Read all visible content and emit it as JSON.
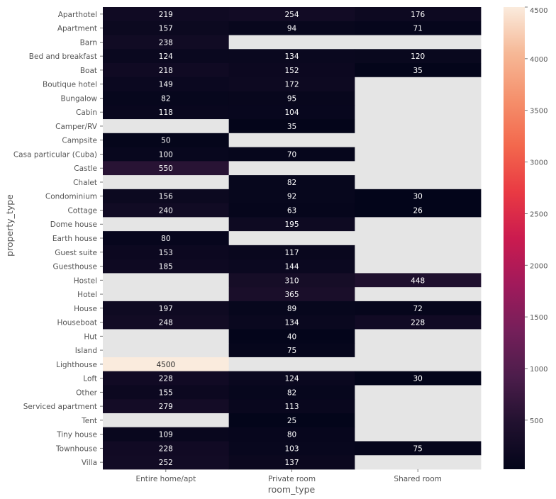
{
  "chart_data": {
    "type": "heatmap",
    "title": "",
    "xlabel": "room_type",
    "ylabel": "property_type",
    "x_categories": [
      "Entire home/apt",
      "Private room",
      "Shared room"
    ],
    "y_categories": [
      "Aparthotel",
      "Apartment",
      "Barn",
      "Bed and breakfast",
      "Boat",
      "Boutique hotel",
      "Bungalow",
      "Cabin",
      "Camper/RV",
      "Campsite",
      "Casa particular (Cuba)",
      "Castle",
      "Chalet",
      "Condominium",
      "Cottage",
      "Dome house",
      "Earth house",
      "Guest suite",
      "Guesthouse",
      "Hostel",
      "Hotel",
      "House",
      "Houseboat",
      "Hut",
      "Island",
      "Lighthouse",
      "Loft",
      "Other",
      "Serviced apartment",
      "Tent",
      "Tiny house",
      "Townhouse",
      "Villa"
    ],
    "values": [
      [
        219,
        254,
        176
      ],
      [
        157,
        94,
        71
      ],
      [
        238,
        null,
        null
      ],
      [
        124,
        134,
        120
      ],
      [
        218,
        152,
        35
      ],
      [
        149,
        172,
        null
      ],
      [
        82,
        95,
        null
      ],
      [
        118,
        104,
        null
      ],
      [
        null,
        35,
        null
      ],
      [
        50,
        null,
        null
      ],
      [
        100,
        70,
        null
      ],
      [
        550,
        null,
        null
      ],
      [
        null,
        82,
        null
      ],
      [
        156,
        92,
        30
      ],
      [
        240,
        63,
        26
      ],
      [
        null,
        195,
        null
      ],
      [
        80,
        null,
        null
      ],
      [
        153,
        117,
        null
      ],
      [
        185,
        144,
        null
      ],
      [
        null,
        310,
        448
      ],
      [
        null,
        365,
        null
      ],
      [
        197,
        89,
        72
      ],
      [
        248,
        134,
        228
      ],
      [
        null,
        40,
        null
      ],
      [
        null,
        75,
        null
      ],
      [
        4500,
        null,
        null
      ],
      [
        228,
        124,
        30
      ],
      [
        155,
        82,
        null
      ],
      [
        279,
        113,
        null
      ],
      [
        null,
        25,
        null
      ],
      [
        109,
        80,
        null
      ],
      [
        228,
        103,
        75
      ],
      [
        252,
        137,
        null
      ]
    ],
    "colorbar": {
      "vmin": 25,
      "vmax": 4500,
      "ticks": [
        500,
        1000,
        1500,
        2000,
        2500,
        3000,
        3500,
        4000,
        4500
      ],
      "colormap": "rocket"
    },
    "missing_color": "#e5e5e5",
    "grid": false
  }
}
